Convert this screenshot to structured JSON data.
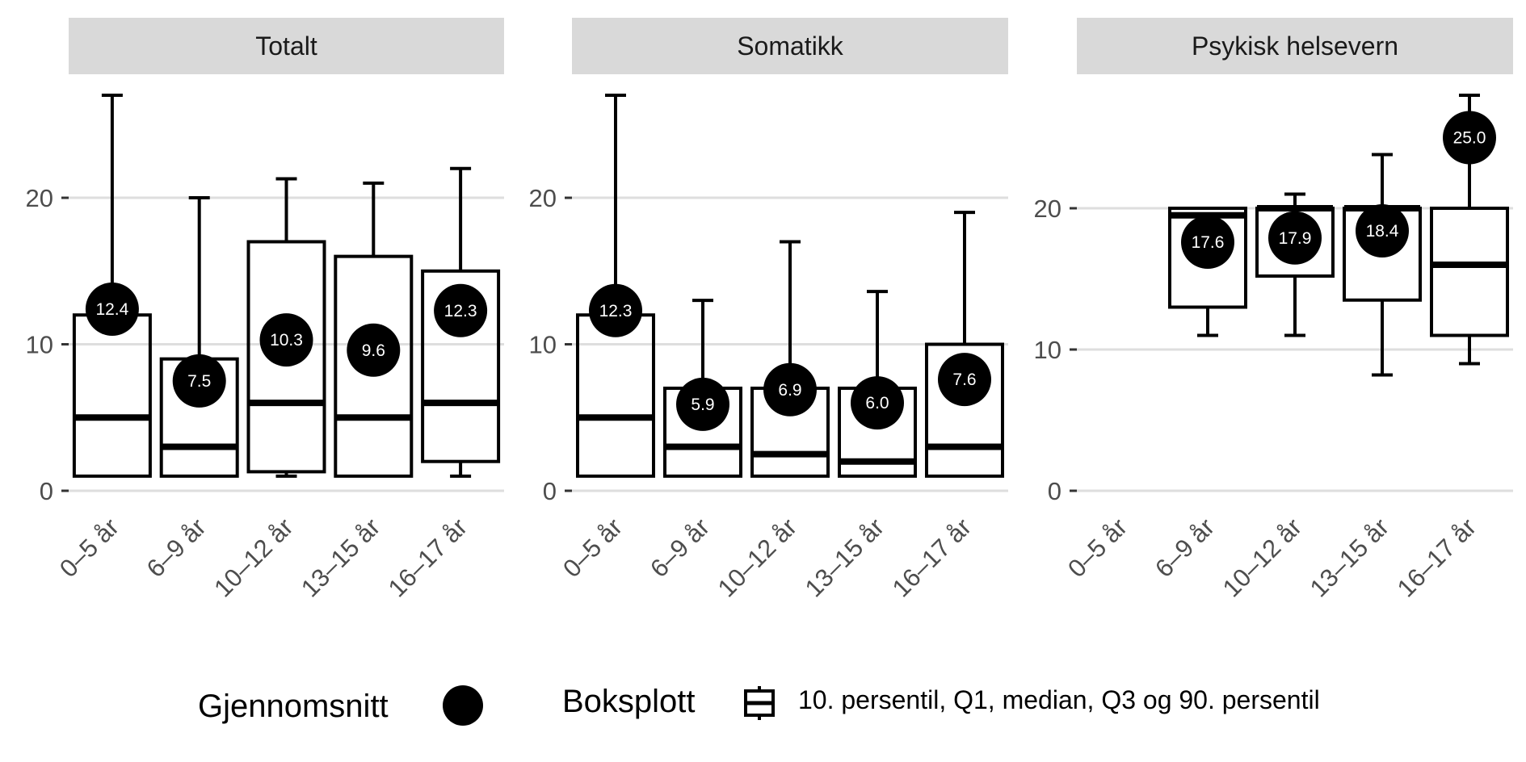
{
  "chart_data": {
    "type": "box",
    "categories": [
      "0–5 år",
      "6–9 år",
      "10–12 år",
      "13–15 år",
      "16–17 år"
    ],
    "facets": [
      {
        "title": "Totalt",
        "ylim": [
          0,
          27
        ],
        "yticks": [
          0,
          10,
          20
        ],
        "boxes": [
          {
            "p10": 1,
            "q1": 1,
            "median": 5,
            "q3": 12,
            "p90": 27,
            "mean": 12.4,
            "mean_label": "12.4"
          },
          {
            "p10": 1,
            "q1": 1,
            "median": 3,
            "q3": 9,
            "p90": 20,
            "mean": 7.5,
            "mean_label": "7.5"
          },
          {
            "p10": 1,
            "q1": 1.3,
            "median": 6,
            "q3": 17,
            "p90": 21.3,
            "mean": 10.3,
            "mean_label": "10.3"
          },
          {
            "p10": 1,
            "q1": 1,
            "median": 5,
            "q3": 16,
            "p90": 21,
            "mean": 9.6,
            "mean_label": "9.6"
          },
          {
            "p10": 1,
            "q1": 2,
            "median": 6,
            "q3": 15,
            "p90": 22,
            "mean": 12.3,
            "mean_label": "12.3"
          }
        ]
      },
      {
        "title": "Somatikk",
        "ylim": [
          0,
          27
        ],
        "yticks": [
          0,
          10,
          20
        ],
        "boxes": [
          {
            "p10": 1,
            "q1": 1,
            "median": 5,
            "q3": 12,
            "p90": 27,
            "mean": 12.3,
            "mean_label": "12.3"
          },
          {
            "p10": 1,
            "q1": 1,
            "median": 3,
            "q3": 7,
            "p90": 13,
            "mean": 5.9,
            "mean_label": "5.9"
          },
          {
            "p10": 1,
            "q1": 1,
            "median": 2.5,
            "q3": 7,
            "p90": 17,
            "mean": 6.9,
            "mean_label": "6.9"
          },
          {
            "p10": 1,
            "q1": 1,
            "median": 2,
            "q3": 7,
            "p90": 13.6,
            "mean": 6.0,
            "mean_label": "6.0"
          },
          {
            "p10": 1,
            "q1": 1,
            "median": 3,
            "q3": 10,
            "p90": 19,
            "mean": 7.6,
            "mean_label": "7.6"
          }
        ]
      },
      {
        "title": "Psykisk helsevern",
        "ylim": [
          0,
          28
        ],
        "yticks": [
          0,
          10,
          20
        ],
        "boxes": [
          null,
          {
            "p10": 11,
            "q1": 13,
            "median": 19.5,
            "q3": 20,
            "p90": 20,
            "mean": 17.6,
            "mean_label": "17.6"
          },
          {
            "p10": 11,
            "q1": 15.2,
            "median": 20,
            "q3": 20,
            "p90": 21,
            "mean": 17.9,
            "mean_label": "17.9"
          },
          {
            "p10": 8.2,
            "q1": 13.5,
            "median": 20,
            "q3": 20,
            "p90": 23.8,
            "mean": 18.4,
            "mean_label": "18.4"
          },
          {
            "p10": 9,
            "q1": 11,
            "median": 16,
            "q3": 20,
            "p90": 28,
            "mean": 25.0,
            "mean_label": "25.0"
          }
        ]
      }
    ],
    "legend": {
      "mean_title": "Gjennomsnitt",
      "box_title": "Boksplott",
      "box_description": "10. persentil, Q1, median, Q3 og 90. persentil",
      "placement": "bottom"
    },
    "colors": {
      "strip_bg": "#d9d9d9",
      "grid": "#dedede",
      "box": "#000000",
      "mean": "#000000",
      "mean_text": "#ffffff",
      "tick_text": "#4d4d4d"
    }
  }
}
